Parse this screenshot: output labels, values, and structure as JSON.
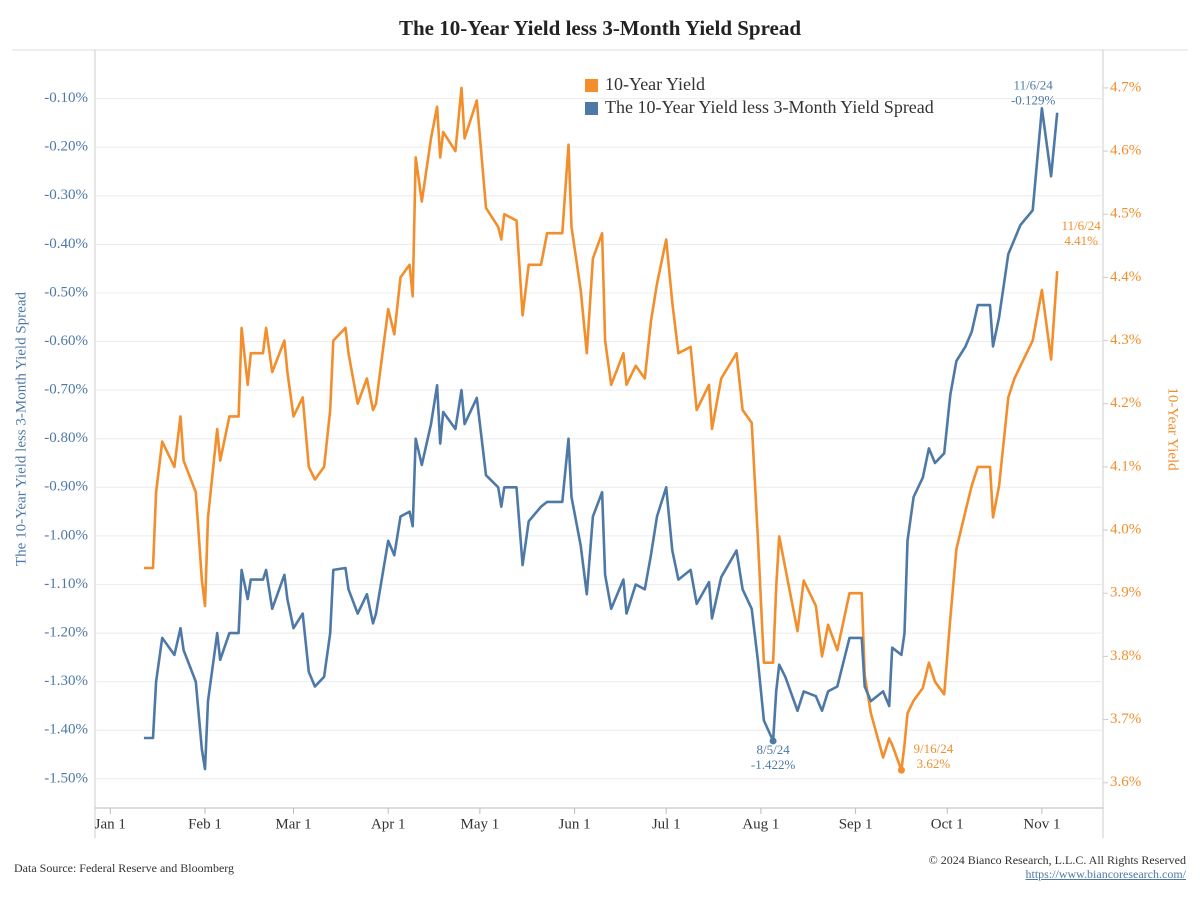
{
  "chart_data": {
    "type": "line",
    "title": "The 10-Year Yield less 3-Month Yield Spread",
    "y_label": "The 10-Year Yield less 3-Month Yield Spread",
    "y2_label": "10-Year Yield",
    "source": "Data Source: Federal Reserve and Bloomberg",
    "copyright": "© 2024 Bianco Research, L.L.C. All Rights Reserved",
    "url": "https://www.biancoresearch.com/",
    "grid": true,
    "legend": "top",
    "xlim": [
      "2023-12-27",
      "2024-11-21"
    ],
    "xticks": [
      {
        "value": "2024-01-01",
        "label": "Jan 1"
      },
      {
        "value": "2024-02-01",
        "label": "Feb 1"
      },
      {
        "value": "2024-03-01",
        "label": "Mar 1"
      },
      {
        "value": "2024-04-01",
        "label": "Apr 1"
      },
      {
        "value": "2024-05-01",
        "label": "May 1"
      },
      {
        "value": "2024-06-01",
        "label": "Jun 1"
      },
      {
        "value": "2024-07-01",
        "label": "Jul 1"
      },
      {
        "value": "2024-08-01",
        "label": "Aug 1"
      },
      {
        "value": "2024-09-01",
        "label": "Sep 1"
      },
      {
        "value": "2024-10-01",
        "label": "Oct 1"
      },
      {
        "value": "2024-11-01",
        "label": "Nov 1"
      }
    ],
    "ylim": [
      -1.56,
      0.0
    ],
    "yticks": [
      {
        "value": -0.1,
        "label": "-0.10%"
      },
      {
        "value": -0.2,
        "label": "-0.20%"
      },
      {
        "value": -0.3,
        "label": "-0.30%"
      },
      {
        "value": -0.4,
        "label": "-0.40%"
      },
      {
        "value": -0.5,
        "label": "-0.50%"
      },
      {
        "value": -0.6,
        "label": "-0.60%"
      },
      {
        "value": -0.7,
        "label": "-0.70%"
      },
      {
        "value": -0.8,
        "label": "-0.80%"
      },
      {
        "value": -0.9,
        "label": "-0.90%"
      },
      {
        "value": -1.0,
        "label": "-1.00%"
      },
      {
        "value": -1.1,
        "label": "-1.10%"
      },
      {
        "value": -1.2,
        "label": "-1.20%"
      },
      {
        "value": -1.3,
        "label": "-1.30%"
      },
      {
        "value": -1.4,
        "label": "-1.40%"
      },
      {
        "value": -1.5,
        "label": "-1.50%"
      }
    ],
    "y2lim": [
      3.56,
      4.76
    ],
    "y2ticks": [
      {
        "value": 3.6,
        "label": "3.6%"
      },
      {
        "value": 3.7,
        "label": "3.7%"
      },
      {
        "value": 3.8,
        "label": "3.8%"
      },
      {
        "value": 3.9,
        "label": "3.9%"
      },
      {
        "value": 4.0,
        "label": "4.0%"
      },
      {
        "value": 4.1,
        "label": "4.1%"
      },
      {
        "value": 4.2,
        "label": "4.2%"
      },
      {
        "value": 4.3,
        "label": "4.3%"
      },
      {
        "value": 4.4,
        "label": "4.4%"
      },
      {
        "value": 4.5,
        "label": "4.5%"
      },
      {
        "value": 4.6,
        "label": "4.6%"
      },
      {
        "value": 4.7,
        "label": "4.7%"
      }
    ],
    "x": [
      "2024-01-12",
      "2024-01-15",
      "2024-01-16",
      "2024-01-18",
      "2024-01-22",
      "2024-01-24",
      "2024-01-25",
      "2024-01-29",
      "2024-01-31",
      "2024-02-01",
      "2024-02-02",
      "2024-02-05",
      "2024-02-06",
      "2024-02-09",
      "2024-02-12",
      "2024-02-13",
      "2024-02-15",
      "2024-02-16",
      "2024-02-20",
      "2024-02-21",
      "2024-02-23",
      "2024-02-27",
      "2024-02-28",
      "2024-03-01",
      "2024-03-04",
      "2024-03-06",
      "2024-03-08",
      "2024-03-11",
      "2024-03-13",
      "2024-03-14",
      "2024-03-18",
      "2024-03-19",
      "2024-03-22",
      "2024-03-25",
      "2024-03-27",
      "2024-03-28",
      "2024-04-01",
      "2024-04-03",
      "2024-04-05",
      "2024-04-08",
      "2024-04-09",
      "2024-04-10",
      "2024-04-12",
      "2024-04-15",
      "2024-04-17",
      "2024-04-18",
      "2024-04-19",
      "2024-04-23",
      "2024-04-25",
      "2024-04-26",
      "2024-04-30",
      "2024-05-03",
      "2024-05-07",
      "2024-05-08",
      "2024-05-09",
      "2024-05-13",
      "2024-05-15",
      "2024-05-17",
      "2024-05-21",
      "2024-05-23",
      "2024-05-28",
      "2024-05-30",
      "2024-05-31",
      "2024-06-03",
      "2024-06-05",
      "2024-06-07",
      "2024-06-10",
      "2024-06-11",
      "2024-06-13",
      "2024-06-17",
      "2024-06-18",
      "2024-06-21",
      "2024-06-24",
      "2024-06-26",
      "2024-06-28",
      "2024-07-01",
      "2024-07-03",
      "2024-07-05",
      "2024-07-09",
      "2024-07-11",
      "2024-07-15",
      "2024-07-16",
      "2024-07-19",
      "2024-07-24",
      "2024-07-26",
      "2024-07-29",
      "2024-07-31",
      "2024-08-02",
      "2024-08-05",
      "2024-08-06",
      "2024-08-07",
      "2024-08-09",
      "2024-08-13",
      "2024-08-15",
      "2024-08-19",
      "2024-08-21",
      "2024-08-23",
      "2024-08-26",
      "2024-08-30",
      "2024-09-03",
      "2024-09-04",
      "2024-09-06",
      "2024-09-10",
      "2024-09-12",
      "2024-09-13",
      "2024-09-16",
      "2024-09-17",
      "2024-09-18",
      "2024-09-20",
      "2024-09-23",
      "2024-09-25",
      "2024-09-27",
      "2024-09-30",
      "2024-10-02",
      "2024-10-04",
      "2024-10-07",
      "2024-10-09",
      "2024-10-11",
      "2024-10-15",
      "2024-10-16",
      "2024-10-18",
      "2024-10-21",
      "2024-10-23",
      "2024-10-25",
      "2024-10-29",
      "2024-11-01",
      "2024-11-04",
      "2024-11-06"
    ],
    "series": [
      {
        "name": "10-Year Yield",
        "color": "#f28e2b",
        "axis": "y2",
        "values": [
          3.94,
          3.94,
          4.06,
          4.14,
          4.1,
          4.18,
          4.11,
          4.06,
          3.92,
          3.88,
          4.02,
          4.16,
          4.11,
          4.18,
          4.18,
          4.32,
          4.23,
          4.28,
          4.28,
          4.32,
          4.25,
          4.3,
          4.25,
          4.18,
          4.21,
          4.1,
          4.08,
          4.1,
          4.19,
          4.3,
          4.32,
          4.28,
          4.2,
          4.24,
          4.19,
          4.2,
          4.35,
          4.31,
          4.4,
          4.42,
          4.37,
          4.59,
          4.52,
          4.62,
          4.67,
          4.59,
          4.63,
          4.6,
          4.7,
          4.62,
          4.68,
          4.51,
          4.48,
          4.46,
          4.5,
          4.49,
          4.34,
          4.42,
          4.42,
          4.47,
          4.47,
          4.61,
          4.48,
          4.38,
          4.28,
          4.43,
          4.47,
          4.3,
          4.23,
          4.28,
          4.23,
          4.26,
          4.24,
          4.33,
          4.39,
          4.46,
          4.36,
          4.28,
          4.29,
          4.19,
          4.23,
          4.16,
          4.24,
          4.28,
          4.19,
          4.17,
          3.99,
          3.79,
          3.79,
          3.91,
          3.99,
          3.94,
          3.84,
          3.92,
          3.88,
          3.8,
          3.85,
          3.81,
          3.9,
          3.9,
          3.77,
          3.71,
          3.64,
          3.67,
          3.66,
          3.62,
          3.66,
          3.71,
          3.73,
          3.75,
          3.79,
          3.76,
          3.74,
          3.86,
          3.97,
          4.03,
          4.07,
          4.1,
          4.1,
          4.02,
          4.07,
          4.21,
          4.24,
          4.26,
          4.3,
          4.38,
          4.27,
          4.41
        ]
      },
      {
        "name": "The 10-Year Yield less 3-Month Yield Spread",
        "color": "#4e79a7",
        "axis": "y",
        "values": [
          -1.416,
          -1.416,
          -1.3,
          -1.21,
          -1.245,
          -1.19,
          -1.235,
          -1.3,
          -1.44,
          -1.48,
          -1.34,
          -1.2,
          -1.255,
          -1.2,
          -1.2,
          -1.07,
          -1.13,
          -1.09,
          -1.09,
          -1.07,
          -1.15,
          -1.08,
          -1.13,
          -1.19,
          -1.16,
          -1.28,
          -1.31,
          -1.29,
          -1.2,
          -1.07,
          -1.066,
          -1.11,
          -1.16,
          -1.12,
          -1.18,
          -1.16,
          -1.01,
          -1.04,
          -0.96,
          -0.95,
          -0.98,
          -0.8,
          -0.854,
          -0.77,
          -0.69,
          -0.81,
          -0.745,
          -0.78,
          -0.7,
          -0.77,
          -0.716,
          -0.875,
          -0.9,
          -0.94,
          -0.9,
          -0.9,
          -1.06,
          -0.97,
          -0.94,
          -0.93,
          -0.93,
          -0.8,
          -0.92,
          -1.02,
          -1.12,
          -0.96,
          -0.91,
          -1.08,
          -1.15,
          -1.09,
          -1.16,
          -1.1,
          -1.11,
          -1.04,
          -0.96,
          -0.9,
          -1.03,
          -1.09,
          -1.07,
          -1.14,
          -1.095,
          -1.17,
          -1.085,
          -1.03,
          -1.11,
          -1.15,
          -1.255,
          -1.38,
          -1.422,
          -1.32,
          -1.265,
          -1.29,
          -1.36,
          -1.32,
          -1.33,
          -1.36,
          -1.32,
          -1.31,
          -1.21,
          -1.21,
          -1.31,
          -1.34,
          -1.32,
          -1.35,
          -1.23,
          -1.245,
          -1.2,
          -1.01,
          -0.92,
          -0.88,
          -0.82,
          -0.85,
          -0.83,
          -0.71,
          -0.64,
          -0.61,
          -0.58,
          -0.525,
          -0.525,
          -0.61,
          -0.55,
          -0.42,
          -0.39,
          -0.36,
          -0.33,
          -0.12,
          -0.26,
          -0.129
        ]
      }
    ],
    "annotations": [
      {
        "date": "2024-11-06",
        "axis": "y",
        "text": "11/6/24",
        "value": -0.129,
        "value_label": "-0.129%"
      },
      {
        "date": "2024-11-06",
        "axis": "y2",
        "text": "11/6/24",
        "value": 4.41,
        "value_label": "4.41%"
      },
      {
        "date": "2024-08-05",
        "axis": "y",
        "text": "8/5/24",
        "value": -1.422,
        "value_label": "-1.422%"
      },
      {
        "date": "2024-09-16",
        "axis": "y2",
        "text": "9/16/24",
        "value": 3.62,
        "value_label": "3.62%"
      }
    ]
  }
}
